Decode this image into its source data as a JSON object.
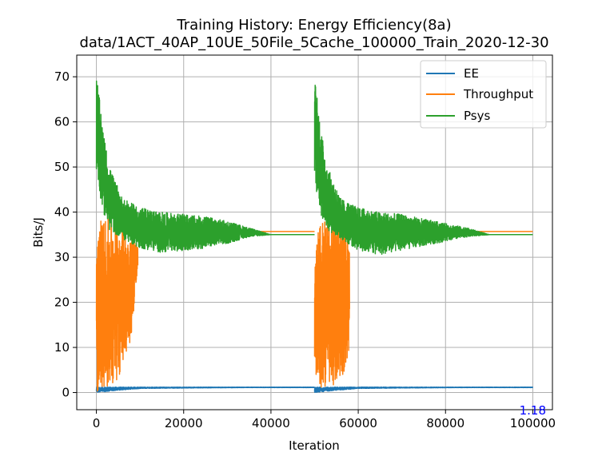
{
  "chart_data": {
    "type": "line",
    "title": "Training History: Energy Efficiency(8a)",
    "subtitle": "data/1ACT_40AP_10UE_50File_5Cache_100000_Train_2020-12-30",
    "xlabel": "Iteration",
    "ylabel": "Bits/J",
    "xlim": [
      -4500,
      104500
    ],
    "ylim": [
      -3.8,
      74.8
    ],
    "x_ticks": [
      0,
      20000,
      40000,
      60000,
      80000,
      100000
    ],
    "x_tick_labels": [
      "0",
      "20000",
      "40000",
      "60000",
      "80000",
      "100000"
    ],
    "y_ticks": [
      0,
      10,
      20,
      30,
      40,
      50,
      60,
      70
    ],
    "y_tick_labels": [
      "0",
      "10",
      "20",
      "30",
      "40",
      "50",
      "60",
      "70"
    ],
    "grid": true,
    "legend_position": "top-right",
    "series": [
      {
        "name": "EE",
        "color": "#1f77b4",
        "segments": [
          {
            "x_start": 0,
            "x_end": 50000,
            "noise": {
              "x": [
                0,
                5000,
                10000,
                20000,
                35000,
                50000
              ],
              "low": [
                0.0,
                0.5,
                0.9,
                1.0,
                1.1,
                1.1
              ],
              "high": [
                1.2,
                1.2,
                1.2,
                1.2,
                1.2,
                1.2
              ]
            }
          },
          {
            "x_start": 50000,
            "x_end": 100000,
            "noise": {
              "x": [
                50000,
                55000,
                60000,
                70000,
                85000,
                100000
              ],
              "low": [
                0.0,
                0.5,
                0.9,
                1.0,
                1.1,
                1.1
              ],
              "high": [
                1.2,
                1.2,
                1.2,
                1.2,
                1.2,
                1.2
              ]
            }
          }
        ]
      },
      {
        "name": "Throughput",
        "color": "#ff7f0e",
        "segments": [
          {
            "x_start": 0,
            "x_end": 9500,
            "noise": {
              "x": [
                0,
                800,
                2500,
                5000,
                6500,
                8000,
                9500
              ],
              "low": [
                0.0,
                1.0,
                1.0,
                3.0,
                8.0,
                12.0,
                28.0
              ],
              "high": [
                37.0,
                38.5,
                38.5,
                38.0,
                37.0,
                35.0,
                33.0
              ]
            }
          },
          {
            "x_start": 9500,
            "x_end": 50000,
            "constant": 35.7
          },
          {
            "x_start": 50000,
            "x_end": 58000,
            "noise": {
              "x": [
                50000,
                51000,
                53000,
                55000,
                56500,
                58000
              ],
              "low": [
                0.0,
                0.5,
                1.0,
                2.0,
                4.0,
                8.0
              ],
              "high": [
                37.0,
                38.5,
                38.5,
                38.0,
                37.0,
                36.0
              ]
            }
          },
          {
            "x_start": 58000,
            "x_end": 100000,
            "constant": 35.7
          }
        ]
      },
      {
        "name": "Psys",
        "color": "#2ca02c",
        "segments": [
          {
            "x_start": 0,
            "x_end": 50000,
            "noise": {
              "x": [
                0,
                600,
                1500,
                3000,
                6000,
                10000,
                15000,
                20000,
                25000,
                30000,
                35000,
                40000,
                50000
              ],
              "low": [
                49.0,
                45.0,
                40.0,
                36.0,
                34.0,
                32.0,
                31.0,
                31.5,
                32.0,
                33.0,
                34.5,
                35.0,
                35.0
              ],
              "high": [
                71.0,
                66.0,
                58.0,
                50.0,
                43.0,
                41.0,
                40.0,
                39.5,
                39.0,
                38.0,
                36.5,
                35.0,
                35.0
              ]
            }
          },
          {
            "x_start": 50000,
            "x_end": 100000,
            "noise": {
              "x": [
                50000,
                50600,
                51500,
                53000,
                56000,
                60000,
                65000,
                70000,
                75000,
                80000,
                85000,
                90000,
                100000
              ],
              "low": [
                45.0,
                44.0,
                39.0,
                36.0,
                34.0,
                31.5,
                30.5,
                31.5,
                32.5,
                33.5,
                34.5,
                35.0,
                35.0
              ],
              "high": [
                71.5,
                66.0,
                58.0,
                50.0,
                43.0,
                41.0,
                40.0,
                39.5,
                38.5,
                37.5,
                36.5,
                35.0,
                35.0
              ]
            }
          }
        ]
      }
    ],
    "annotations": [
      {
        "text": "1.18",
        "x": 100000,
        "y": -3.8,
        "color": "#0000ff"
      }
    ]
  }
}
